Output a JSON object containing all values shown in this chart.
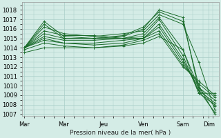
{
  "xlabel": "Pression niveau de la mer( hPa )",
  "ylim": [
    1006.8,
    1018.8
  ],
  "yticks": [
    1007,
    1008,
    1009,
    1010,
    1011,
    1012,
    1013,
    1014,
    1015,
    1016,
    1017,
    1018
  ],
  "xtick_labels": [
    "Mar",
    "Mar",
    "Jeu",
    "Ven",
    "Sam",
    "Dim"
  ],
  "xtick_positions": [
    0.0,
    2.0,
    4.0,
    6.0,
    8.0,
    9.3
  ],
  "xlim": [
    -0.1,
    9.8
  ],
  "bg_color": "#d4ece6",
  "grid_color": "#a8cdc7",
  "line_color": "#1a6b2a",
  "series": [
    [
      1014.0,
      1016.8,
      1015.2,
      1015.0,
      1015.2,
      1016.0,
      1018.0,
      1017.2,
      1009.5,
      1007.2
    ],
    [
      1014.0,
      1016.5,
      1015.0,
      1015.0,
      1015.3,
      1016.2,
      1017.8,
      1016.8,
      1010.0,
      1007.0
    ],
    [
      1014.0,
      1016.2,
      1015.5,
      1015.2,
      1015.5,
      1015.8,
      1017.5,
      1016.5,
      1012.5,
      1007.5
    ],
    [
      1014.0,
      1015.8,
      1015.3,
      1015.3,
      1015.0,
      1015.5,
      1017.2,
      1013.8,
      1009.8,
      1007.8
    ],
    [
      1014.0,
      1015.5,
      1015.0,
      1015.0,
      1015.0,
      1015.2,
      1017.0,
      1013.2,
      1009.2,
      1008.0
    ],
    [
      1014.0,
      1015.2,
      1014.8,
      1014.8,
      1015.0,
      1015.0,
      1016.5,
      1012.8,
      1009.5,
      1008.2
    ],
    [
      1014.0,
      1015.0,
      1014.5,
      1014.5,
      1014.8,
      1015.0,
      1016.2,
      1012.5,
      1009.8,
      1008.5
    ],
    [
      1014.0,
      1014.8,
      1014.5,
      1014.3,
      1014.5,
      1015.0,
      1015.8,
      1012.2,
      1010.2,
      1008.8
    ],
    [
      1013.8,
      1014.5,
      1014.2,
      1014.0,
      1014.3,
      1014.8,
      1015.5,
      1012.0,
      1010.5,
      1009.0
    ],
    [
      1013.5,
      1014.0,
      1014.0,
      1014.0,
      1014.2,
      1014.5,
      1015.2,
      1013.8,
      1009.2,
      1009.2
    ]
  ],
  "x_vals": [
    0.0,
    1.0,
    2.0,
    3.5,
    5.0,
    6.0,
    6.8,
    8.0,
    8.8,
    9.6
  ]
}
